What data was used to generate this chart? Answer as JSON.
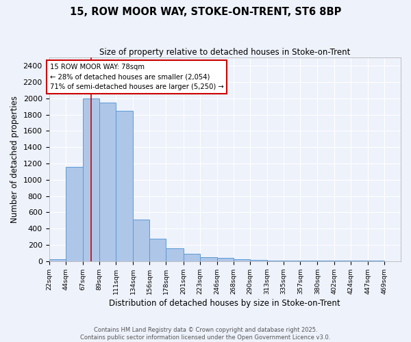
{
  "title": "15, ROW MOOR WAY, STOKE-ON-TRENT, ST6 8BP",
  "subtitle": "Size of property relative to detached houses in Stoke-on-Trent",
  "xlabel": "Distribution of detached houses by size in Stoke-on-Trent",
  "ylabel": "Number of detached properties",
  "bin_labels": [
    "22sqm",
    "44sqm",
    "67sqm",
    "89sqm",
    "111sqm",
    "134sqm",
    "156sqm",
    "178sqm",
    "201sqm",
    "223sqm",
    "246sqm",
    "268sqm",
    "290sqm",
    "313sqm",
    "335sqm",
    "357sqm",
    "380sqm",
    "402sqm",
    "424sqm",
    "447sqm",
    "469sqm"
  ],
  "bin_edges": [
    22,
    44,
    67,
    89,
    111,
    134,
    156,
    178,
    201,
    223,
    246,
    268,
    290,
    313,
    335,
    357,
    380,
    402,
    424,
    447,
    469,
    491
  ],
  "bar_heights": [
    25,
    1160,
    2000,
    1950,
    1850,
    510,
    275,
    155,
    90,
    45,
    40,
    25,
    15,
    10,
    8,
    5,
    5,
    5,
    5,
    5,
    0
  ],
  "bar_color": "#aec6e8",
  "bar_edge_color": "#5b9bd5",
  "property_size": 78,
  "vline_color": "#cc0000",
  "annotation_text": "15 ROW MOOR WAY: 78sqm\n← 28% of detached houses are smaller (2,054)\n71% of semi-detached houses are larger (5,250) →",
  "annotation_box_color": "#ffffff",
  "annotation_box_edge_color": "#cc0000",
  "ylim": [
    0,
    2500
  ],
  "yticks": [
    0,
    200,
    400,
    600,
    800,
    1000,
    1200,
    1400,
    1600,
    1800,
    2000,
    2200,
    2400
  ],
  "background_color": "#eef2fb",
  "grid_color": "#ffffff",
  "footer_line1": "Contains HM Land Registry data © Crown copyright and database right 2025.",
  "footer_line2": "Contains public sector information licensed under the Open Government Licence v3.0."
}
